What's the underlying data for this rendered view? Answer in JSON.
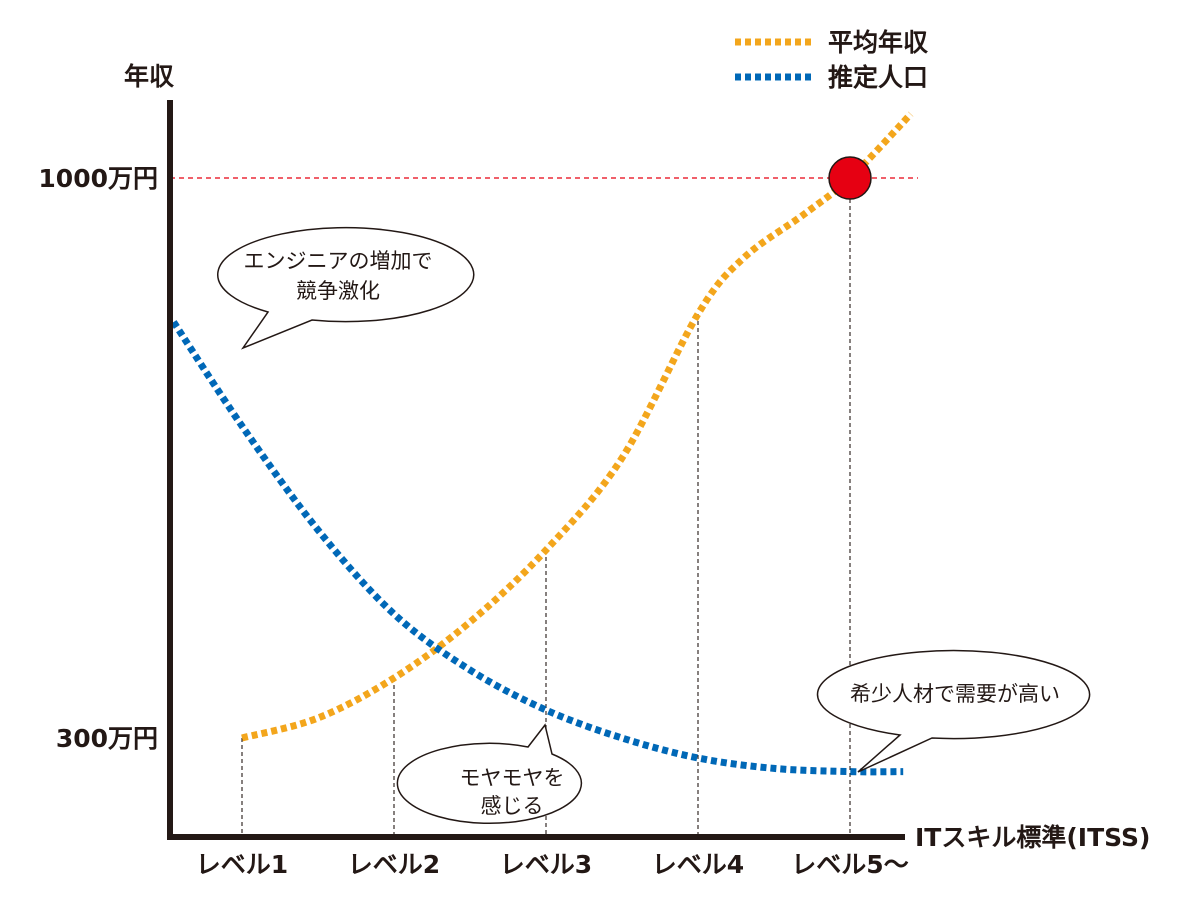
{
  "chart_data": {
    "type": "line",
    "title": "",
    "xlabel": "ITスキル標準(ITSS)",
    "ylabel": "年収",
    "categories": [
      "レベル1",
      "レベル2",
      "レベル3",
      "レベル4",
      "レベル5〜"
    ],
    "y_ticks": [
      "1000万円",
      "300万円"
    ],
    "y_tick_values": [
      1000,
      300
    ],
    "reference_line": {
      "value": 1000,
      "color": "#e60012",
      "style": "dashed"
    },
    "highlight_point": {
      "category": "レベル5〜",
      "value": 1000,
      "color": "#e60012"
    },
    "legend": {
      "placement": "top-right"
    },
    "grid": false,
    "series": [
      {
        "name": "平均年収",
        "color": "#f3a61c",
        "x": [
          0.0,
          0.5,
          1.0,
          1.5,
          2.0,
          2.5,
          3.0,
          3.3,
          3.7,
          4.0,
          4.4
        ],
        "values": [
          300,
          325,
          375,
          445,
          535,
          650,
          830,
          900,
          955,
          1000,
          1080
        ]
      },
      {
        "name": "推定人口",
        "color": "#0068b7",
        "x": [
          -0.45,
          0.0,
          0.5,
          1.0,
          1.5,
          2.0,
          2.5,
          3.0,
          3.5,
          4.0,
          4.35
        ],
        "values": [
          820,
          690,
          560,
          455,
          385,
          335,
          300,
          275,
          262,
          258,
          258
        ]
      }
    ],
    "annotations": [
      {
        "id": "engineer",
        "lines": [
          "エンジニアの増加で",
          "競争激化"
        ]
      },
      {
        "id": "moyamoya",
        "lines": [
          "モヤモヤを",
          "感じる"
        ]
      },
      {
        "id": "rare",
        "lines": [
          "希少人材で需要が高い"
        ]
      }
    ]
  }
}
